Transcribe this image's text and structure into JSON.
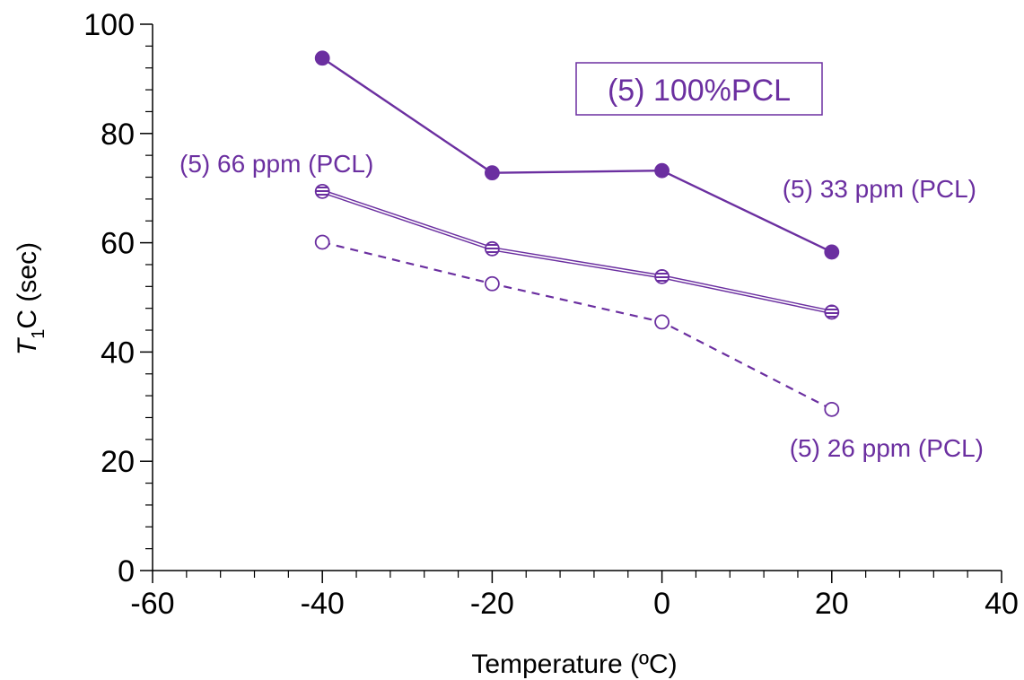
{
  "chart_data": {
    "type": "line",
    "xlabel": "Temperature (ºC)",
    "ylabel": {
      "italic": "T",
      "subscript": "1",
      "rest": "C (sec)"
    },
    "xlim": [
      -60,
      40
    ],
    "ylim": [
      0,
      100
    ],
    "x_ticks": [
      "-60",
      "-40",
      "-20",
      "0",
      "20",
      "40"
    ],
    "y_ticks": [
      "0",
      "20",
      "40",
      "60",
      "80",
      "100"
    ],
    "x_tick_values": [
      -60,
      -40,
      -20,
      0,
      20,
      40
    ],
    "y_tick_values": [
      0,
      20,
      40,
      60,
      80,
      100
    ],
    "x_minor_step": 4,
    "y_minor_step": 4,
    "grid": false,
    "series": [
      {
        "label": "(5) 33 ppm (PCL)",
        "marker": "filled-circle",
        "line": "solid",
        "x": [
          -40,
          -20,
          0,
          20
        ],
        "y": [
          93.8,
          72.8,
          73.2,
          58.3
        ]
      },
      {
        "label": "(5) 66 ppm (PCL)",
        "marker": "striped-circle",
        "line": "double",
        "x": [
          -40,
          -20,
          0,
          20
        ],
        "y": [
          69.4,
          58.9,
          53.8,
          47.3
        ]
      },
      {
        "label": "(5) 26 ppm (PCL)",
        "marker": "open-circle",
        "line": "dashed",
        "x": [
          -40,
          -20,
          0,
          20
        ],
        "y": [
          60.1,
          52.5,
          45.5,
          29.5
        ]
      }
    ],
    "annotation_box": "(5) 100%PCL",
    "colors": {
      "series": "#6b2fa0",
      "axis": "#000000"
    }
  }
}
